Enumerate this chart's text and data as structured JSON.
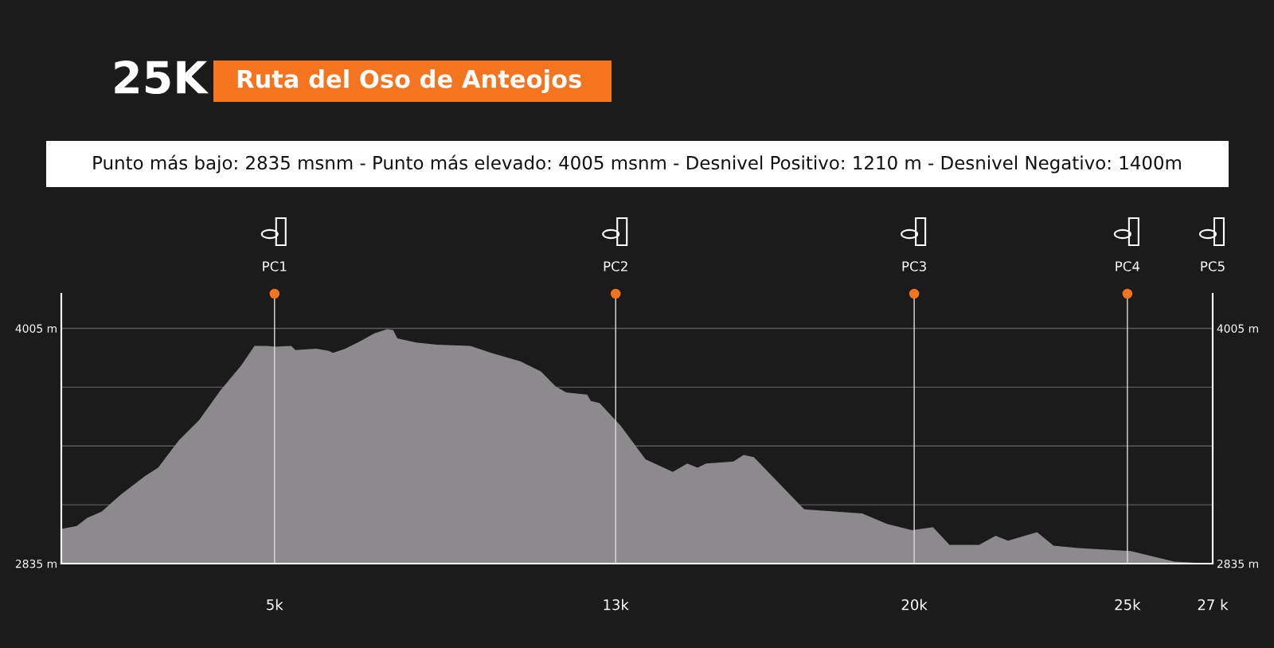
{
  "chart_data": {
    "type": "area",
    "title": "Ruta del Oso de Anteojos",
    "subtitle": "Punto más bajo: 2835 msnm - Punto más elevado: 4005 msnm - Desnivel Positivo: 1210 m - Desnivel Negativo: 1400m",
    "annotations": [
      "25K",
      "PC5"
    ],
    "x": [
      0,
      0.36,
      0.61,
      0.95,
      1.39,
      1.97,
      2.27,
      2.75,
      3.24,
      3.73,
      4.22,
      4.53,
      4.8,
      5.0,
      5.39,
      5.49,
      5.98,
      6.27,
      6.37,
      6.66,
      7.05,
      7.34,
      7.64,
      7.78,
      7.88,
      8.32,
      8.81,
      9.59,
      10.08,
      10.77,
      11.25,
      11.59,
      11.84,
      12.33,
      12.42,
      12.62,
      13.12,
      13.7,
      14.34,
      14.68,
      14.92,
      15.12,
      15.76,
      16.0,
      16.24,
      17.42,
      18.78,
      19.37,
      19.95,
      20.44,
      20.83,
      21.52,
      21.91,
      22.2,
      22.88,
      23.27,
      23.86,
      25.08,
      26.1,
      26.98
    ],
    "series": [
      {
        "color": "#8c8a8c",
        "values": [
          3007,
          3022,
          3063,
          3094,
          3177,
          3271,
          3312,
          3447,
          3551,
          3696,
          3821,
          3918,
          3918,
          3914,
          3918,
          3897,
          3904,
          3893,
          3883,
          3904,
          3945,
          3980,
          4001,
          3997,
          3955,
          3935,
          3924,
          3918,
          3883,
          3841,
          3790,
          3717,
          3686,
          3675,
          3644,
          3634,
          3520,
          3354,
          3291,
          3333,
          3312,
          3333,
          3343,
          3375,
          3364,
          3105,
          3084,
          3032,
          3001,
          3016,
          2928,
          2928,
          2974,
          2949,
          2991,
          2924,
          2912,
          2897,
          2845,
          2835
        ]
      }
    ],
    "xlim": [
      0,
      27
    ],
    "xticks": [
      {
        "value": 5,
        "label": "5k"
      },
      {
        "value": 13,
        "label": "13k"
      },
      {
        "value": 20,
        "label": "20k"
      },
      {
        "value": 25,
        "label": "25k"
      },
      {
        "value": 27,
        "label": "27 k"
      }
    ],
    "ylim": [
      2835,
      4177
    ],
    "yticks": [
      {
        "value": 2835,
        "label": "2835 m"
      },
      {
        "value": 3127.5,
        "label": null
      },
      {
        "value": 3420,
        "label": null
      },
      {
        "value": 3712.5,
        "label": null
      },
      {
        "value": 4005,
        "label": "4005 m"
      }
    ],
    "y2lim": [
      2835,
      4177
    ],
    "y2ticks": [
      {
        "value": 2835,
        "label": "2835 m"
      },
      {
        "value": 4005,
        "label": "4005 m"
      }
    ],
    "grid": "y",
    "ref_lines": [
      {
        "axis": "x",
        "value": 5,
        "label": "PC1",
        "color": "#dddddd"
      },
      {
        "axis": "x",
        "value": 13,
        "label": "PC2",
        "color": "#dddddd"
      },
      {
        "axis": "x",
        "value": 20,
        "label": "PC3",
        "color": "#dddddd"
      },
      {
        "axis": "x",
        "value": 25,
        "label": "PC4",
        "color": "#dddddd"
      }
    ]
  }
}
